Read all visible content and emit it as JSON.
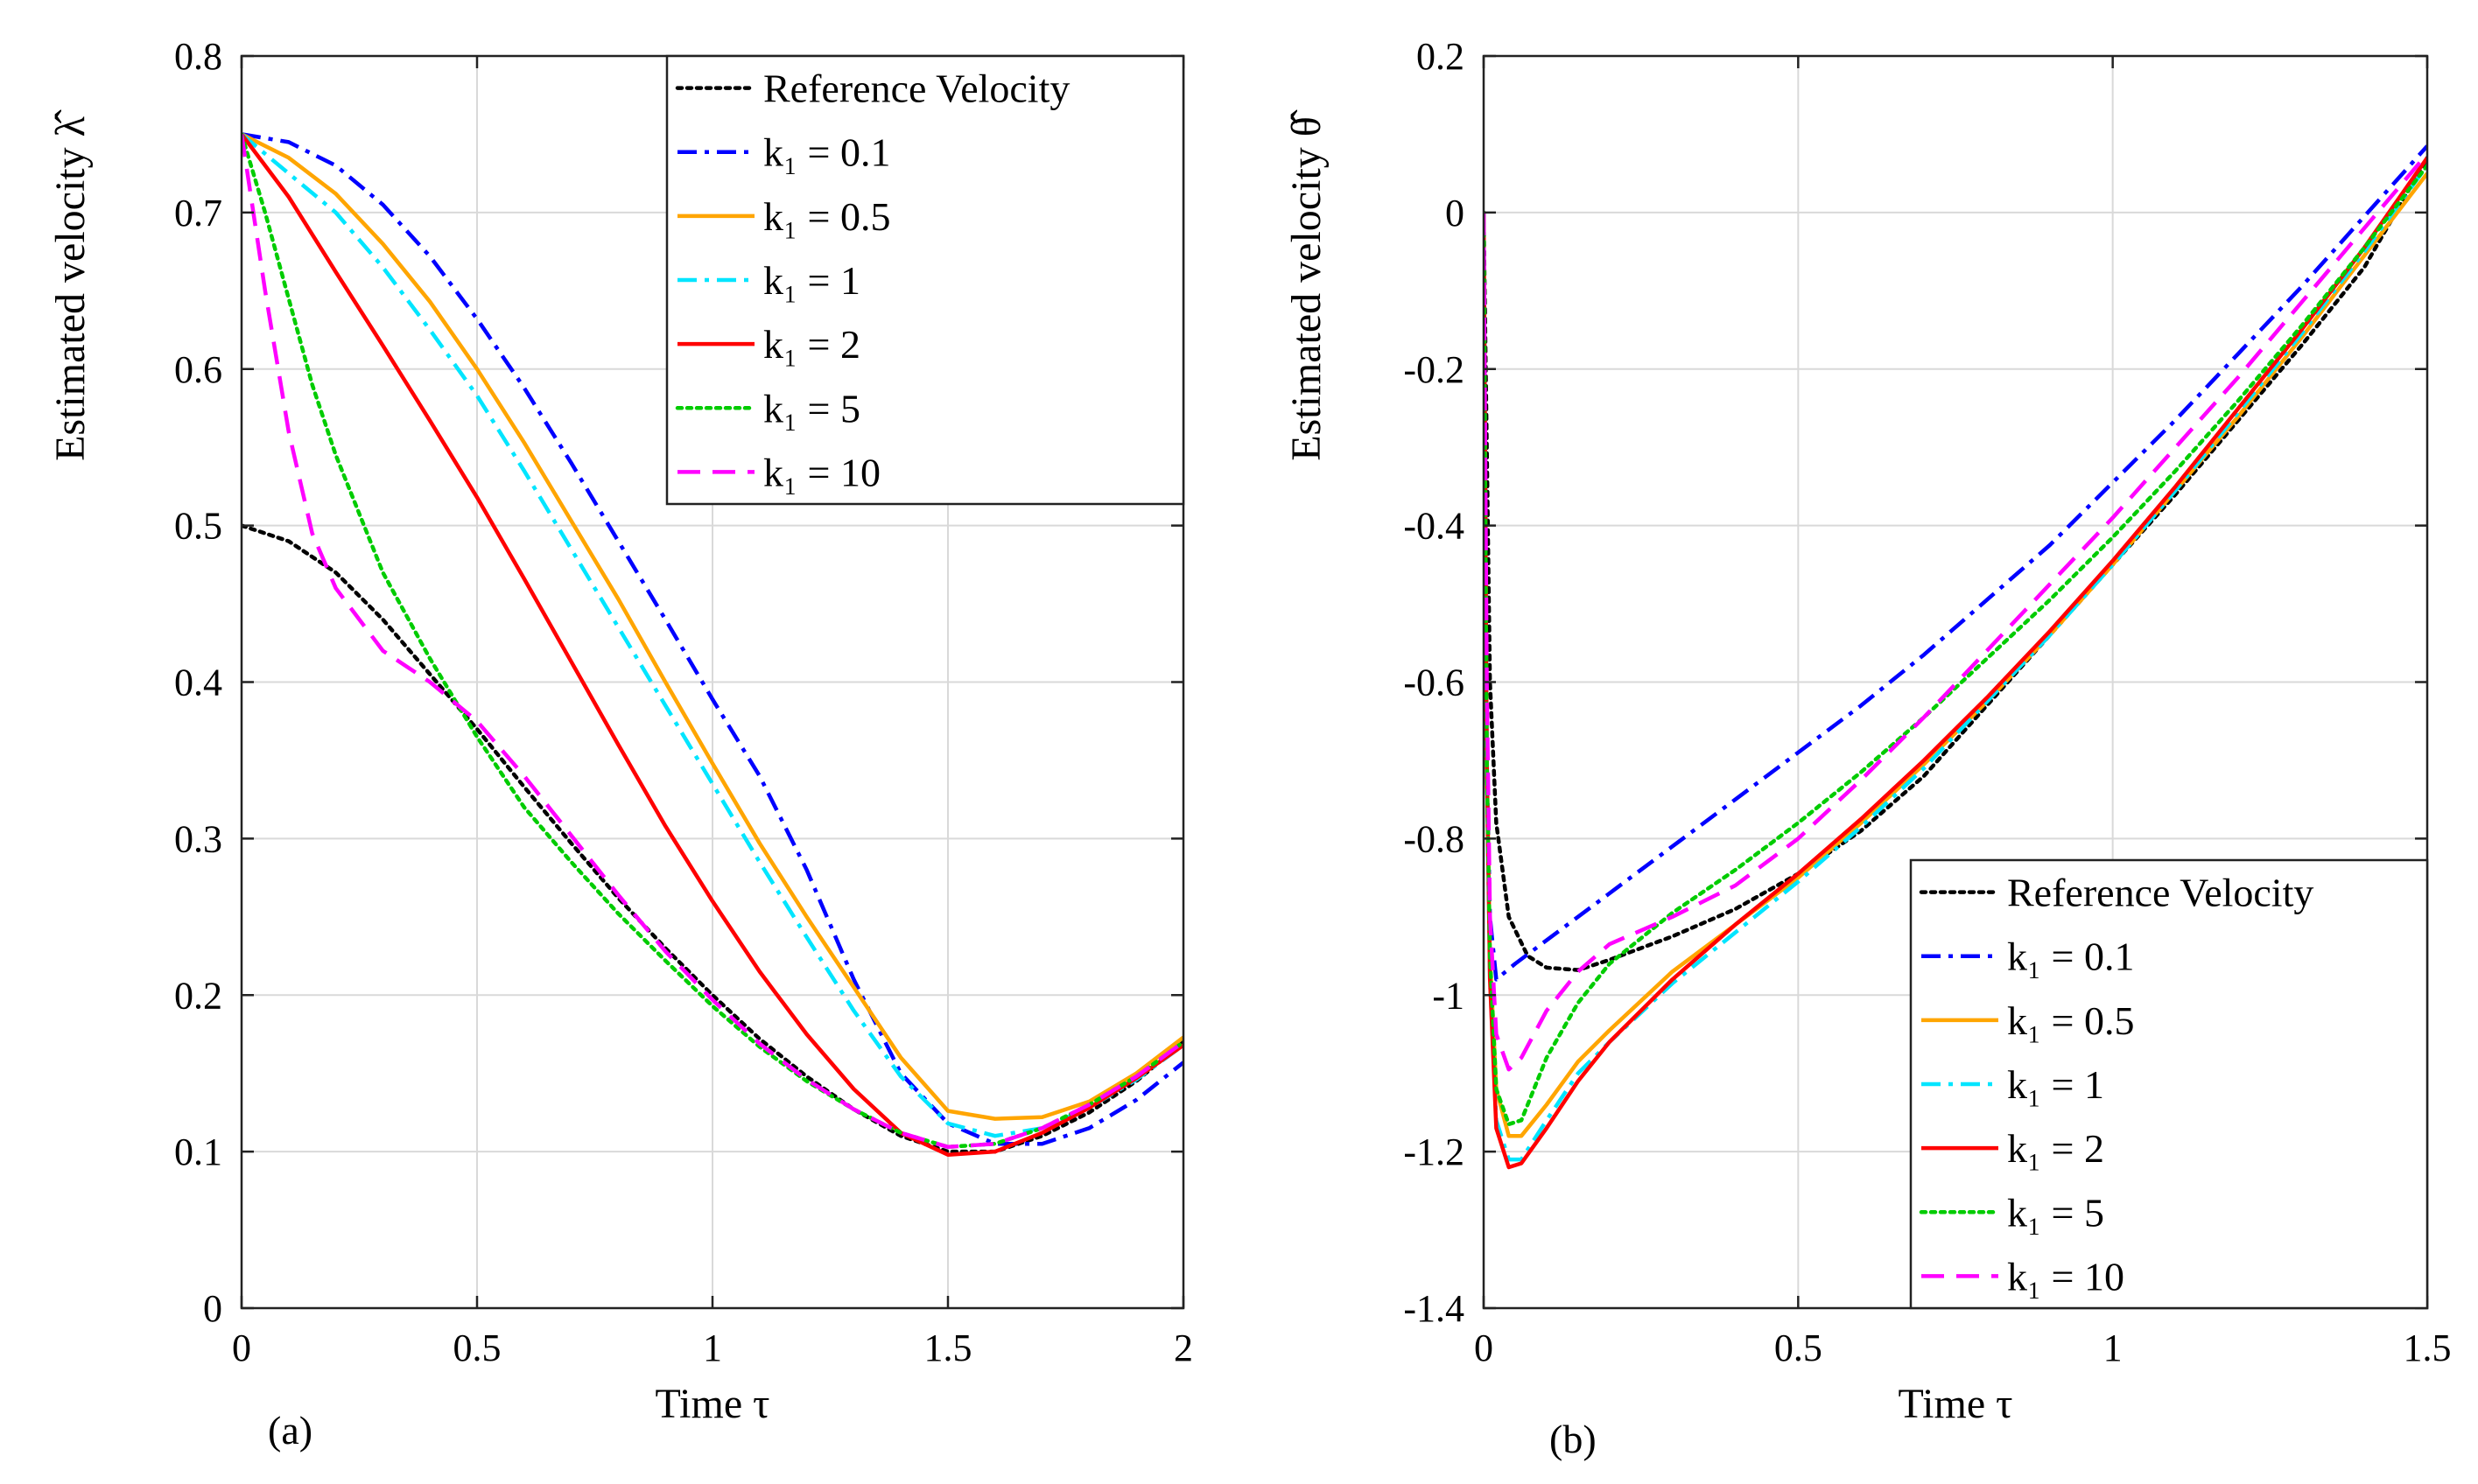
{
  "chart_data": [
    {
      "type": "line",
      "panel_label": "(a)",
      "xlabel": "Time τ",
      "ylabel": "Estimated velocity λ̂̂",
      "xlim": [
        0,
        2
      ],
      "ylim": [
        0,
        0.8
      ],
      "xticks": [
        0,
        0.5,
        1,
        1.5,
        2
      ],
      "xtick_labels": [
        "0",
        "0.5",
        "1",
        "1.5",
        "2"
      ],
      "yticks": [
        0,
        0.1,
        0.2,
        0.3,
        0.4,
        0.5,
        0.6,
        0.7,
        0.8
      ],
      "ytick_labels": [
        "0",
        "0.1",
        "0.2",
        "0.3",
        "0.4",
        "0.5",
        "0.6",
        "0.7",
        "0.8"
      ],
      "grid": true,
      "legend_position": "top-right",
      "series": [
        {
          "name": "Reference Velocity",
          "color": "#000000",
          "style": "dotted",
          "x": [
            0,
            0.1,
            0.2,
            0.3,
            0.4,
            0.5,
            0.6,
            0.7,
            0.8,
            0.9,
            1.0,
            1.1,
            1.2,
            1.3,
            1.4,
            1.5,
            1.6,
            1.7,
            1.8,
            1.9,
            2.0
          ],
          "y": [
            0.5,
            0.49,
            0.47,
            0.44,
            0.405,
            0.37,
            0.333,
            0.297,
            0.262,
            0.23,
            0.2,
            0.172,
            0.148,
            0.127,
            0.11,
            0.1,
            0.1,
            0.11,
            0.125,
            0.145,
            0.17
          ]
        },
        {
          "name": "k₁ = 0.1",
          "color": "#0000ff",
          "style": "dashdot",
          "x": [
            0,
            0.1,
            0.2,
            0.3,
            0.4,
            0.5,
            0.6,
            0.7,
            0.8,
            0.9,
            1.0,
            1.1,
            1.2,
            1.3,
            1.4,
            1.5,
            1.6,
            1.7,
            1.8,
            1.9,
            2.0
          ],
          "y": [
            0.75,
            0.745,
            0.73,
            0.705,
            0.672,
            0.632,
            0.588,
            0.54,
            0.49,
            0.44,
            0.389,
            0.34,
            0.28,
            0.21,
            0.15,
            0.118,
            0.105,
            0.105,
            0.115,
            0.133,
            0.157
          ]
        },
        {
          "name": "k₁ = 0.5",
          "color": "#ffa500",
          "style": "solid",
          "x": [
            0,
            0.1,
            0.2,
            0.3,
            0.4,
            0.5,
            0.6,
            0.7,
            0.8,
            0.9,
            1.0,
            1.1,
            1.2,
            1.3,
            1.4,
            1.5,
            1.6,
            1.7,
            1.8,
            1.9,
            2.0
          ],
          "y": [
            0.75,
            0.735,
            0.712,
            0.68,
            0.643,
            0.6,
            0.553,
            0.503,
            0.453,
            0.4,
            0.348,
            0.297,
            0.25,
            0.205,
            0.16,
            0.126,
            0.121,
            0.122,
            0.132,
            0.15,
            0.173
          ]
        },
        {
          "name": "k₁ = 1",
          "color": "#00e5ff",
          "style": "dashdot",
          "x": [
            0,
            0.1,
            0.2,
            0.3,
            0.4,
            0.5,
            0.6,
            0.7,
            0.8,
            0.9,
            1.0,
            1.1,
            1.2,
            1.3,
            1.4,
            1.5,
            1.6,
            1.7,
            1.8,
            1.9,
            2.0
          ],
          "y": [
            0.75,
            0.725,
            0.7,
            0.665,
            0.625,
            0.583,
            0.535,
            0.485,
            0.435,
            0.385,
            0.335,
            0.285,
            0.237,
            0.19,
            0.148,
            0.118,
            0.11,
            0.115,
            0.128,
            0.146,
            0.168
          ]
        },
        {
          "name": "k₁ = 2",
          "color": "#ff0000",
          "style": "solid",
          "x": [
            0,
            0.1,
            0.2,
            0.3,
            0.4,
            0.5,
            0.6,
            0.7,
            0.8,
            0.9,
            1.0,
            1.1,
            1.2,
            1.3,
            1.4,
            1.5,
            1.6,
            1.7,
            1.8,
            1.9,
            2.0
          ],
          "y": [
            0.75,
            0.71,
            0.662,
            0.615,
            0.567,
            0.518,
            0.466,
            0.413,
            0.36,
            0.308,
            0.26,
            0.215,
            0.175,
            0.14,
            0.112,
            0.098,
            0.1,
            0.112,
            0.128,
            0.147,
            0.168
          ]
        },
        {
          "name": "k₁ = 5",
          "color": "#00cc00",
          "style": "dotted",
          "x": [
            0,
            0.05,
            0.1,
            0.15,
            0.2,
            0.3,
            0.4,
            0.5,
            0.6,
            0.7,
            0.8,
            0.9,
            1.0,
            1.1,
            1.2,
            1.3,
            1.4,
            1.5,
            1.6,
            1.7,
            1.8,
            1.9,
            2.0
          ],
          "y": [
            0.75,
            0.7,
            0.645,
            0.59,
            0.545,
            0.47,
            0.415,
            0.365,
            0.32,
            0.285,
            0.252,
            0.222,
            0.193,
            0.167,
            0.145,
            0.127,
            0.112,
            0.103,
            0.105,
            0.115,
            0.13,
            0.148,
            0.17
          ]
        },
        {
          "name": "k₁ = 10",
          "color": "#ff00ff",
          "style": "dashed",
          "x": [
            0,
            0.05,
            0.1,
            0.15,
            0.2,
            0.25,
            0.3,
            0.4,
            0.5,
            0.6,
            0.7,
            0.8,
            0.9,
            1.0,
            1.1,
            1.2,
            1.3,
            1.4,
            1.5,
            1.6,
            1.7,
            1.8,
            1.9,
            2.0
          ],
          "y": [
            0.75,
            0.65,
            0.56,
            0.495,
            0.46,
            0.44,
            0.42,
            0.4,
            0.375,
            0.34,
            0.302,
            0.264,
            0.228,
            0.197,
            0.169,
            0.146,
            0.127,
            0.112,
            0.103,
            0.105,
            0.115,
            0.13,
            0.148,
            0.17
          ]
        }
      ]
    },
    {
      "type": "line",
      "panel_label": "(b)",
      "xlabel": "Time τ",
      "ylabel": "Estimated velocity θ̂̂",
      "xlim": [
        0,
        1.5
      ],
      "ylim": [
        -1.4,
        0.2
      ],
      "xticks": [
        0,
        0.5,
        1,
        1.5
      ],
      "xtick_labels": [
        "0",
        "0.5",
        "1",
        "1.5"
      ],
      "yticks": [
        -1.4,
        -1.2,
        -1,
        -0.8,
        -0.6,
        -0.4,
        -0.2,
        0,
        0.2
      ],
      "ytick_labels": [
        "-1.4",
        "-1.2",
        "-1",
        "-0.8",
        "-0.6",
        "-0.4",
        "-0.2",
        "0",
        "0.2"
      ],
      "grid": true,
      "legend_position": "bottom-right",
      "series": [
        {
          "name": "Reference Velocity",
          "color": "#000000",
          "style": "dotted",
          "x": [
            0,
            0.01,
            0.02,
            0.04,
            0.07,
            0.1,
            0.15,
            0.2,
            0.3,
            0.4,
            0.5,
            0.6,
            0.7,
            0.8,
            0.9,
            1.0,
            1.1,
            1.2,
            1.3,
            1.4,
            1.5
          ],
          "y": [
            0,
            -0.6,
            -0.78,
            -0.9,
            -0.95,
            -0.965,
            -0.968,
            -0.955,
            -0.925,
            -0.89,
            -0.845,
            -0.79,
            -0.72,
            -0.63,
            -0.54,
            -0.45,
            -0.36,
            -0.265,
            -0.17,
            -0.07,
            0.07
          ]
        },
        {
          "name": "k₁ = 0.1",
          "color": "#0000ff",
          "style": "dashdot",
          "x": [
            0,
            0.005,
            0.01,
            0.02,
            0.05,
            0.1,
            0.2,
            0.3,
            0.4,
            0.5,
            0.6,
            0.7,
            0.8,
            0.9,
            1.0,
            1.1,
            1.2,
            1.3,
            1.4,
            1.5
          ],
          "y": [
            0,
            -0.7,
            -0.9,
            -0.98,
            -0.96,
            -0.93,
            -0.87,
            -0.81,
            -0.75,
            -0.69,
            -0.63,
            -0.565,
            -0.495,
            -0.425,
            -0.345,
            -0.265,
            -0.18,
            -0.095,
            -0.005,
            0.085
          ]
        },
        {
          "name": "k₁ = 0.5",
          "color": "#ffa500",
          "style": "solid",
          "x": [
            0,
            0.005,
            0.01,
            0.02,
            0.04,
            0.06,
            0.1,
            0.15,
            0.2,
            0.3,
            0.4,
            0.5,
            0.6,
            0.7,
            0.8,
            0.9,
            1.0,
            1.1,
            1.2,
            1.3,
            1.4,
            1.5
          ],
          "y": [
            0,
            -0.7,
            -0.95,
            -1.12,
            -1.18,
            -1.18,
            -1.14,
            -1.085,
            -1.045,
            -0.97,
            -0.91,
            -0.85,
            -0.78,
            -0.705,
            -0.625,
            -0.54,
            -0.45,
            -0.355,
            -0.26,
            -0.16,
            -0.055,
            0.05
          ]
        },
        {
          "name": "k₁ = 1",
          "color": "#00e5ff",
          "style": "dashdot",
          "x": [
            0,
            0.005,
            0.01,
            0.02,
            0.04,
            0.06,
            0.1,
            0.15,
            0.2,
            0.3,
            0.4,
            0.5,
            0.6,
            0.7,
            0.8,
            0.9,
            1.0,
            1.1,
            1.2,
            1.3,
            1.4,
            1.5
          ],
          "y": [
            0,
            -0.7,
            -0.98,
            -1.16,
            -1.21,
            -1.21,
            -1.16,
            -1.1,
            -1.06,
            -0.985,
            -0.92,
            -0.855,
            -0.785,
            -0.71,
            -0.625,
            -0.54,
            -0.45,
            -0.355,
            -0.255,
            -0.155,
            -0.05,
            0.06
          ]
        },
        {
          "name": "k₁ = 2",
          "color": "#ff0000",
          "style": "solid",
          "x": [
            0,
            0.005,
            0.01,
            0.02,
            0.04,
            0.06,
            0.1,
            0.15,
            0.2,
            0.3,
            0.4,
            0.5,
            0.6,
            0.7,
            0.8,
            0.9,
            1.0,
            1.1,
            1.2,
            1.3,
            1.4,
            1.5
          ],
          "y": [
            0,
            -0.7,
            -0.98,
            -1.17,
            -1.22,
            -1.215,
            -1.17,
            -1.11,
            -1.06,
            -0.98,
            -0.91,
            -0.845,
            -0.775,
            -0.7,
            -0.62,
            -0.535,
            -0.445,
            -0.35,
            -0.25,
            -0.15,
            -0.045,
            0.07
          ]
        },
        {
          "name": "k₁ = 5",
          "color": "#00cc00",
          "style": "dotted",
          "x": [
            0,
            0.005,
            0.01,
            0.02,
            0.04,
            0.06,
            0.1,
            0.15,
            0.2,
            0.3,
            0.4,
            0.5,
            0.6,
            0.7,
            0.8,
            0.9,
            1.0,
            1.1,
            1.2,
            1.3,
            1.4,
            1.5
          ],
          "y": [
            0,
            -0.7,
            -0.95,
            -1.12,
            -1.165,
            -1.16,
            -1.08,
            -1.01,
            -0.96,
            -0.895,
            -0.84,
            -0.78,
            -0.715,
            -0.645,
            -0.57,
            -0.495,
            -0.415,
            -0.33,
            -0.24,
            -0.145,
            -0.045,
            0.06
          ]
        },
        {
          "name": "k₁ = 10",
          "color": "#ff00ff",
          "style": "dashed",
          "x": [
            0,
            0.005,
            0.01,
            0.02,
            0.04,
            0.06,
            0.1,
            0.15,
            0.2,
            0.3,
            0.4,
            0.5,
            0.6,
            0.7,
            0.8,
            0.9,
            1.0,
            1.1,
            1.2,
            1.3,
            1.4,
            1.5
          ],
          "y": [
            0,
            -0.6,
            -0.9,
            -1.05,
            -1.095,
            -1.08,
            -1.02,
            -0.97,
            -0.935,
            -0.9,
            -0.86,
            -0.8,
            -0.725,
            -0.645,
            -0.56,
            -0.475,
            -0.39,
            -0.3,
            -0.21,
            -0.115,
            -0.02,
            0.075
          ]
        }
      ]
    }
  ]
}
